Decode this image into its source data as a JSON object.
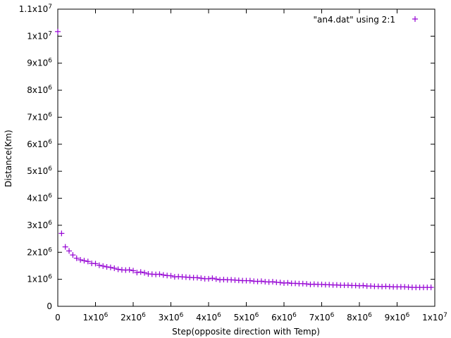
{
  "chart_data": {
    "type": "scatter",
    "title": "",
    "xlabel": "Step(opposite direction with Temp)",
    "ylabel": "Distance(Km)",
    "xlim": [
      0,
      10000000
    ],
    "ylim": [
      0,
      11000000
    ],
    "grid": false,
    "legend_position": "top-right",
    "marker": "+",
    "colors": {
      "series": "#9400d3",
      "axis": "#000000"
    },
    "x_ticks": [
      {
        "value": 0,
        "base": "0",
        "exp": ""
      },
      {
        "value": 1000000,
        "base": "1x10",
        "exp": "6"
      },
      {
        "value": 2000000,
        "base": "2x10",
        "exp": "6"
      },
      {
        "value": 3000000,
        "base": "3x10",
        "exp": "6"
      },
      {
        "value": 4000000,
        "base": "4x10",
        "exp": "6"
      },
      {
        "value": 5000000,
        "base": "5x10",
        "exp": "6"
      },
      {
        "value": 6000000,
        "base": "6x10",
        "exp": "6"
      },
      {
        "value": 7000000,
        "base": "7x10",
        "exp": "6"
      },
      {
        "value": 8000000,
        "base": "8x10",
        "exp": "6"
      },
      {
        "value": 9000000,
        "base": "9x10",
        "exp": "6"
      },
      {
        "value": 10000000,
        "base": "1x10",
        "exp": "7"
      }
    ],
    "y_ticks": [
      {
        "value": 0,
        "base": "0",
        "exp": ""
      },
      {
        "value": 1000000,
        "base": "1x10",
        "exp": "6"
      },
      {
        "value": 2000000,
        "base": "2x10",
        "exp": "6"
      },
      {
        "value": 3000000,
        "base": "3x10",
        "exp": "6"
      },
      {
        "value": 4000000,
        "base": "4x10",
        "exp": "6"
      },
      {
        "value": 5000000,
        "base": "5x10",
        "exp": "6"
      },
      {
        "value": 6000000,
        "base": "6x10",
        "exp": "6"
      },
      {
        "value": 7000000,
        "base": "7x10",
        "exp": "6"
      },
      {
        "value": 8000000,
        "base": "8x10",
        "exp": "6"
      },
      {
        "value": 9000000,
        "base": "9x10",
        "exp": "6"
      },
      {
        "value": 10000000,
        "base": "1x10",
        "exp": "7"
      },
      {
        "value": 11000000,
        "base": "1.1x10",
        "exp": "7"
      }
    ],
    "series": [
      {
        "name": "\"an4.dat\" using 2:1",
        "points": [
          [
            0,
            10170000
          ],
          [
            100000,
            2700000
          ],
          [
            200000,
            2200000
          ],
          [
            300000,
            2050000
          ],
          [
            400000,
            1900000
          ],
          [
            500000,
            1780000
          ],
          [
            600000,
            1720000
          ],
          [
            700000,
            1690000
          ],
          [
            800000,
            1660000
          ],
          [
            900000,
            1590000
          ],
          [
            1000000,
            1580000
          ],
          [
            1100000,
            1520000
          ],
          [
            1200000,
            1490000
          ],
          [
            1300000,
            1460000
          ],
          [
            1400000,
            1440000
          ],
          [
            1500000,
            1410000
          ],
          [
            1600000,
            1370000
          ],
          [
            1700000,
            1350000
          ],
          [
            1800000,
            1340000
          ],
          [
            1900000,
            1350000
          ],
          [
            2000000,
            1320000
          ],
          [
            2100000,
            1250000
          ],
          [
            2200000,
            1270000
          ],
          [
            2300000,
            1240000
          ],
          [
            2400000,
            1200000
          ],
          [
            2500000,
            1190000
          ],
          [
            2600000,
            1180000
          ],
          [
            2700000,
            1190000
          ],
          [
            2800000,
            1160000
          ],
          [
            2900000,
            1140000
          ],
          [
            3000000,
            1130000
          ],
          [
            3100000,
            1090000
          ],
          [
            3200000,
            1100000
          ],
          [
            3300000,
            1090000
          ],
          [
            3400000,
            1080000
          ],
          [
            3500000,
            1070000
          ],
          [
            3600000,
            1060000
          ],
          [
            3700000,
            1060000
          ],
          [
            3800000,
            1040000
          ],
          [
            3900000,
            1020000
          ],
          [
            4000000,
            1020000
          ],
          [
            4100000,
            1040000
          ],
          [
            4200000,
            1010000
          ],
          [
            4300000,
            980000
          ],
          [
            4400000,
            990000
          ],
          [
            4500000,
            980000
          ],
          [
            4600000,
            980000
          ],
          [
            4700000,
            970000
          ],
          [
            4800000,
            960000
          ],
          [
            4900000,
            950000
          ],
          [
            5000000,
            950000
          ],
          [
            5100000,
            950000
          ],
          [
            5200000,
            930000
          ],
          [
            5300000,
            920000
          ],
          [
            5400000,
            930000
          ],
          [
            5500000,
            910000
          ],
          [
            5600000,
            900000
          ],
          [
            5700000,
            910000
          ],
          [
            5800000,
            890000
          ],
          [
            5900000,
            880000
          ],
          [
            6000000,
            860000
          ],
          [
            6100000,
            870000
          ],
          [
            6200000,
            850000
          ],
          [
            6300000,
            850000
          ],
          [
            6400000,
            840000
          ],
          [
            6500000,
            840000
          ],
          [
            6600000,
            830000
          ],
          [
            6700000,
            810000
          ],
          [
            6800000,
            820000
          ],
          [
            6900000,
            810000
          ],
          [
            7000000,
            810000
          ],
          [
            7100000,
            800000
          ],
          [
            7200000,
            800000
          ],
          [
            7300000,
            790000
          ],
          [
            7400000,
            790000
          ],
          [
            7500000,
            780000
          ],
          [
            7600000,
            780000
          ],
          [
            7700000,
            780000
          ],
          [
            7800000,
            770000
          ],
          [
            7900000,
            770000
          ],
          [
            8000000,
            760000
          ],
          [
            8100000,
            770000
          ],
          [
            8200000,
            750000
          ],
          [
            8300000,
            750000
          ],
          [
            8400000,
            740000
          ],
          [
            8500000,
            740000
          ],
          [
            8600000,
            730000
          ],
          [
            8700000,
            740000
          ],
          [
            8800000,
            730000
          ],
          [
            8900000,
            720000
          ],
          [
            9000000,
            720000
          ],
          [
            9100000,
            720000
          ],
          [
            9200000,
            720000
          ],
          [
            9300000,
            710000
          ],
          [
            9400000,
            700000
          ],
          [
            9500000,
            700000
          ],
          [
            9600000,
            700000
          ],
          [
            9700000,
            700000
          ],
          [
            9800000,
            700000
          ],
          [
            9900000,
            700000
          ]
        ]
      }
    ]
  }
}
